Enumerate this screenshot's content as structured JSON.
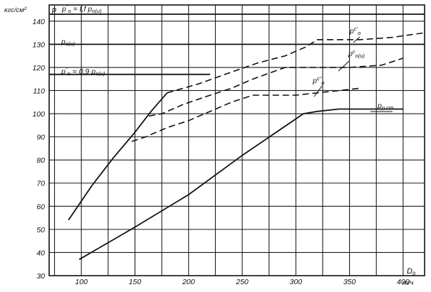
{
  "chart_data": {
    "type": "line",
    "x_unit": "m/ч",
    "x_label": "D",
    "x_label_sub": "o",
    "y_unit": "кгс/см",
    "y_unit_sup": "2",
    "y_label": "p",
    "xlim": [
      70,
      420
    ],
    "ylim": [
      30,
      147
    ],
    "x_ticks": [
      100,
      150,
      200,
      250,
      300,
      350,
      400
    ],
    "y_ticks": [
      30,
      40,
      50,
      60,
      70,
      80,
      90,
      100,
      110,
      120,
      130,
      140
    ],
    "grid": true,
    "reference_lines": [
      {
        "y": 143,
        "x": [
          70,
          420
        ],
        "label": "p",
        "label_sup": "\"",
        "label_sub": "o",
        "label_rest": " = f,f p",
        "label_rest_sub": "o(u)"
      },
      {
        "y": 130,
        "x": [
          70,
          420
        ],
        "label": "p",
        "label_sub": "o(u)"
      },
      {
        "y": 117,
        "x": [
          70,
          220
        ],
        "label": "p",
        "label_sup": "\"",
        "label_sub": "o",
        "label_rest": " = 0,9 p",
        "label_rest_sub": "o(u)"
      }
    ],
    "series": [
      {
        "name": "p",
        "name_sup": "с'",
        "name_sub": "o",
        "style": "mixed",
        "x": [
          88,
          110,
          130,
          150,
          165,
          180,
          210,
          240,
          265,
          290,
          310,
          320,
          340,
          360,
          390,
          420
        ],
        "y": [
          54,
          69,
          81,
          92,
          101,
          109,
          113,
          118,
          122,
          125,
          129,
          132,
          132,
          132,
          133,
          135
        ],
        "dashed_from_x": 180
      },
      {
        "name": "p",
        "name_sup": "с",
        "name_sub": "o(u)",
        "style": "dashed",
        "x": [
          163,
          175,
          195,
          220,
          240,
          260,
          290,
          320,
          350,
          380,
          400
        ],
        "y": [
          99,
          100,
          104,
          108,
          111,
          115,
          120,
          120,
          120,
          121,
          124
        ]
      },
      {
        "name": "p",
        "name_sup": "с\"",
        "name_sub": "o",
        "style": "dashed",
        "x": [
          147,
          160,
          180,
          200,
          220,
          240,
          260,
          280,
          300,
          320,
          340,
          360
        ],
        "y": [
          88,
          90,
          94,
          97,
          101,
          105,
          108,
          108,
          108,
          109,
          110,
          111
        ]
      },
      {
        "name": "p",
        "name_sub": "p ст",
        "style": "solid",
        "x": [
          98,
          150,
          200,
          250,
          307,
          320,
          340,
          360,
          380,
          400
        ],
        "y": [
          37,
          51,
          65,
          82,
          100,
          101,
          102,
          102,
          102,
          102
        ]
      }
    ]
  }
}
